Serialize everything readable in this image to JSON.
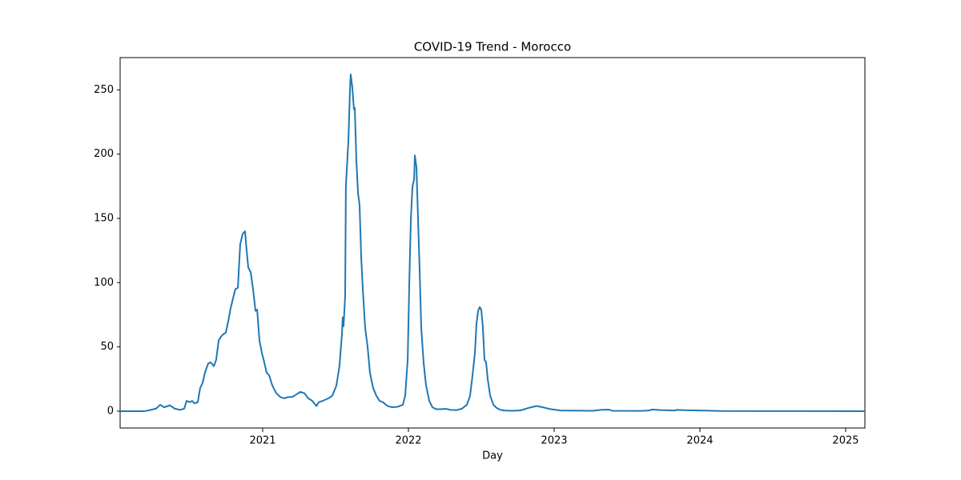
{
  "chart_data": {
    "type": "line",
    "title": "COVID-19 Trend - Morocco",
    "x_label": "Day",
    "x": [
      2020.022,
      2020.187,
      2020.214,
      2020.269,
      2020.297,
      2020.324,
      2020.363,
      2020.396,
      2020.434,
      2020.462,
      2020.478,
      2020.5,
      2020.516,
      2020.533,
      2020.555,
      2020.571,
      2020.588,
      2020.604,
      2020.626,
      2020.643,
      2020.665,
      2020.681,
      2020.698,
      2020.714,
      2020.731,
      2020.747,
      2020.764,
      2020.78,
      2020.797,
      2020.813,
      2020.83,
      2020.846,
      2020.863,
      2020.879,
      2020.89,
      2020.901,
      2020.918,
      2020.934,
      2020.951,
      2020.962,
      2020.978,
      2020.995,
      2021.011,
      2021.027,
      2021.044,
      2021.066,
      2021.093,
      2021.121,
      2021.148,
      2021.176,
      2021.203,
      2021.231,
      2021.258,
      2021.286,
      2021.313,
      2021.341,
      2021.368,
      2021.385,
      2021.412,
      2021.451,
      2021.478,
      2021.506,
      2021.527,
      2021.544,
      2021.549,
      2021.555,
      2021.566,
      2021.571,
      2021.588,
      2021.599,
      2021.604,
      2021.615,
      2021.626,
      2021.632,
      2021.643,
      2021.654,
      2021.665,
      2021.676,
      2021.687,
      2021.703,
      2021.72,
      2021.736,
      2021.758,
      2021.78,
      2021.802,
      2021.824,
      2021.857,
      2021.89,
      2021.929,
      2021.962,
      2021.978,
      2021.995,
      2022.006,
      2022.017,
      2022.028,
      2022.039,
      2022.044,
      2022.055,
      2022.066,
      2022.077,
      2022.088,
      2022.104,
      2022.121,
      2022.143,
      2022.165,
      2022.192,
      2022.22,
      2022.258,
      2022.291,
      2022.33,
      2022.368,
      2022.401,
      2022.423,
      2022.44,
      2022.456,
      2022.467,
      2022.478,
      2022.489,
      2022.5,
      2022.511,
      2022.522,
      2022.533,
      2022.544,
      2022.561,
      2022.583,
      2022.605,
      2022.632,
      2022.659,
      2022.714,
      2022.769,
      2022.824,
      2022.879,
      2022.923,
      2022.978,
      2023.044,
      2023.264,
      2023.319,
      2023.374,
      2023.401,
      2023.594,
      2023.649,
      2023.676,
      2023.731,
      2023.83,
      2023.841,
      2023.923,
      2024.033,
      2024.143,
      2025.132
    ],
    "series": [
      {
        "color": "#1f77b4",
        "values": [
          0,
          0,
          0.5,
          2,
          5,
          3,
          4.5,
          2,
          1,
          2,
          8,
          7,
          8,
          6,
          7,
          18,
          22,
          30,
          37,
          38,
          35,
          40,
          55,
          58,
          60,
          61,
          70,
          80,
          88,
          95,
          96,
          130,
          138,
          140,
          125,
          112,
          108,
          95,
          78,
          79,
          55,
          45,
          38,
          30,
          28,
          20,
          14,
          11,
          10,
          11,
          11,
          13,
          15,
          14,
          10,
          8,
          4,
          7,
          8,
          10,
          12,
          20,
          35,
          60,
          73,
          66,
          90,
          175,
          210,
          250,
          262,
          252,
          235,
          236,
          195,
          170,
          160,
          120,
          95,
          65,
          50,
          30,
          18,
          12,
          8,
          7,
          4,
          3,
          3.5,
          5,
          12,
          40,
          100,
          150,
          175,
          180,
          199,
          190,
          150,
          110,
          65,
          38,
          20,
          8,
          3,
          1.5,
          1.5,
          1.8,
          1,
          0.8,
          2,
          5,
          12,
          28,
          45,
          68,
          78,
          81,
          79,
          65,
          40,
          38,
          25,
          12,
          5,
          2.5,
          1,
          0.5,
          0.3,
          0.6,
          2.5,
          4,
          3,
          1.5,
          0.5,
          0.3,
          1,
          1.2,
          0.3,
          0.2,
          0.5,
          1.3,
          0.8,
          0.5,
          1,
          0.7,
          0.4,
          0.1,
          0
        ]
      }
    ],
    "xlim": [
      2020.022,
      2025.132
    ],
    "xticks": [
      2021,
      2022,
      2023,
      2024,
      2025
    ],
    "ylim": [
      -13.1,
      275.1
    ],
    "yticks": [
      0,
      50,
      100,
      150,
      200,
      250
    ],
    "grid": false
  }
}
